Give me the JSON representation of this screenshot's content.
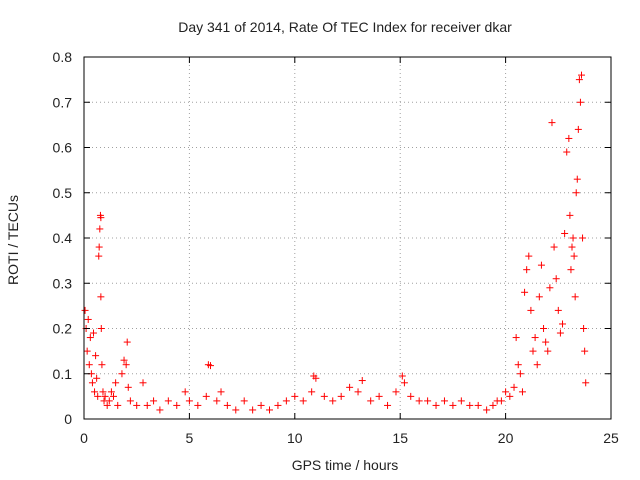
{
  "chart_data": {
    "type": "scatter",
    "title": "Day 341 of 2014, Rate Of TEC Index for receiver dkar",
    "xlabel": "GPS time / hours",
    "ylabel": "ROTI / TECUs",
    "xlim": [
      0,
      25
    ],
    "ylim": [
      0,
      0.8
    ],
    "x_ticks": [
      0,
      5,
      10,
      15,
      20,
      25
    ],
    "y_ticks": [
      0,
      0.1,
      0.2,
      0.3,
      0.4,
      0.5,
      0.6,
      0.7,
      0.8
    ],
    "grid": true,
    "marker": "+",
    "series_color": "#ff0000",
    "series": [
      {
        "x": [
          0.05,
          0.1,
          0.15,
          0.2,
          0.25,
          0.3,
          0.35,
          0.4,
          0.45,
          0.5,
          0.55,
          0.6,
          0.65,
          0.7,
          0.72,
          0.75,
          0.78,
          0.8,
          0.8,
          0.82,
          0.85,
          0.9,
          0.95,
          1.0,
          1.1,
          1.2,
          1.3,
          1.4,
          1.5,
          1.6,
          1.8,
          1.9,
          2.0,
          2.05,
          2.1,
          2.2,
          2.5,
          2.8,
          3.0,
          3.3,
          3.6,
          4.0,
          4.4,
          4.8,
          5.0,
          5.4,
          5.8,
          5.9,
          6.0,
          6.3,
          6.5,
          6.8,
          7.2,
          7.6,
          8.0,
          8.4,
          8.8,
          9.2,
          9.6,
          10.0,
          10.4,
          10.8,
          10.9,
          11.0,
          11.4,
          11.8,
          12.2,
          12.6,
          13.0,
          13.2,
          13.6,
          14.0,
          14.4,
          14.8,
          15.1,
          15.2,
          15.5,
          15.9,
          16.3,
          16.7,
          17.1,
          17.5,
          17.9,
          18.3,
          18.7,
          19.1,
          19.4,
          19.6,
          19.8,
          20.0,
          20.2,
          20.4,
          20.5,
          20.6,
          20.7,
          20.8,
          20.9,
          21.0,
          21.1,
          21.2,
          21.3,
          21.4,
          21.5,
          21.6,
          21.7,
          21.8,
          21.9,
          22.0,
          22.1,
          22.2,
          22.3,
          22.4,
          22.5,
          22.6,
          22.7,
          22.8,
          22.9,
          23.0,
          23.05,
          23.1,
          23.15,
          23.2,
          23.25,
          23.3,
          23.35,
          23.4,
          23.45,
          23.5,
          23.55,
          23.6,
          23.65,
          23.7,
          23.75,
          23.8
        ],
        "y": [
          0.24,
          0.2,
          0.15,
          0.22,
          0.12,
          0.18,
          0.1,
          0.08,
          0.19,
          0.06,
          0.14,
          0.09,
          0.05,
          0.36,
          0.38,
          0.42,
          0.45,
          0.445,
          0.27,
          0.2,
          0.12,
          0.06,
          0.04,
          0.05,
          0.03,
          0.04,
          0.06,
          0.05,
          0.08,
          0.03,
          0.1,
          0.13,
          0.12,
          0.17,
          0.07,
          0.04,
          0.03,
          0.08,
          0.03,
          0.04,
          0.02,
          0.04,
          0.03,
          0.06,
          0.04,
          0.03,
          0.05,
          0.12,
          0.118,
          0.04,
          0.06,
          0.03,
          0.02,
          0.04,
          0.02,
          0.03,
          0.02,
          0.03,
          0.04,
          0.05,
          0.04,
          0.06,
          0.095,
          0.09,
          0.05,
          0.04,
          0.05,
          0.07,
          0.06,
          0.085,
          0.04,
          0.05,
          0.03,
          0.06,
          0.095,
          0.08,
          0.05,
          0.04,
          0.04,
          0.03,
          0.04,
          0.03,
          0.04,
          0.03,
          0.03,
          0.02,
          0.03,
          0.04,
          0.04,
          0.06,
          0.05,
          0.07,
          0.18,
          0.12,
          0.1,
          0.06,
          0.28,
          0.33,
          0.36,
          0.24,
          0.15,
          0.18,
          0.12,
          0.27,
          0.34,
          0.2,
          0.17,
          0.15,
          0.29,
          0.655,
          0.38,
          0.31,
          0.24,
          0.19,
          0.21,
          0.41,
          0.59,
          0.62,
          0.45,
          0.33,
          0.38,
          0.4,
          0.36,
          0.27,
          0.5,
          0.53,
          0.64,
          0.75,
          0.7,
          0.76,
          0.4,
          0.2,
          0.15,
          0.08
        ]
      }
    ]
  }
}
